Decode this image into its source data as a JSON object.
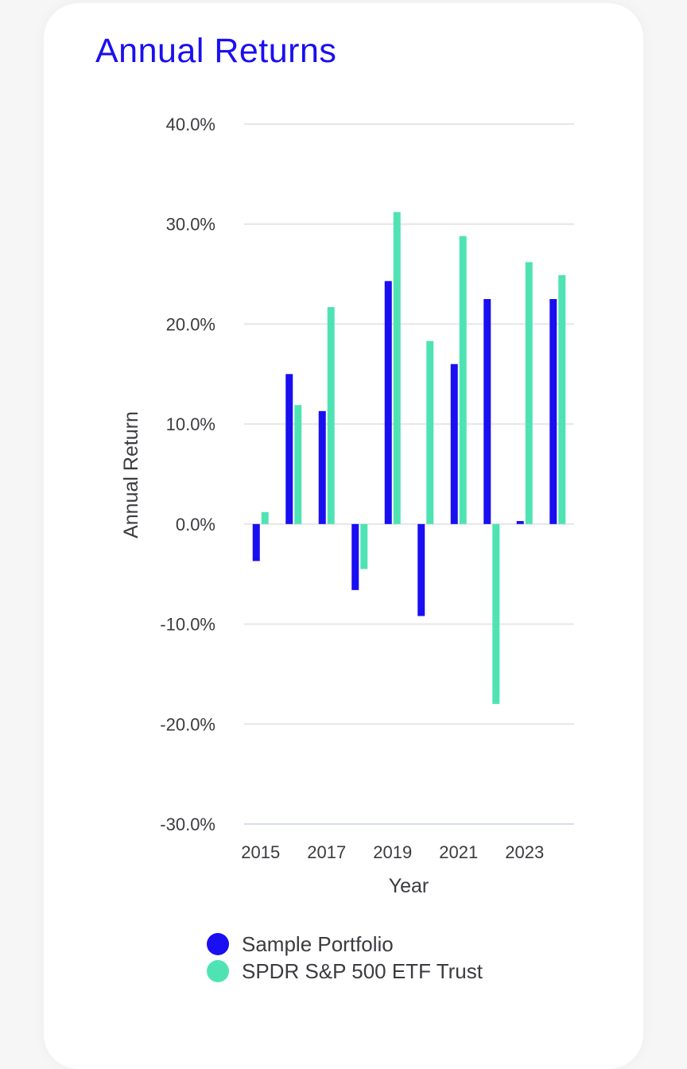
{
  "page": {
    "title": "Annual Returns"
  },
  "colors": {
    "title": "#1a0ff0",
    "portfolio": "#1a0ff0",
    "benchmark": "#4fe3b3",
    "grid": "#e6e6ea",
    "baseline": "#d7dde9"
  },
  "chart_data": {
    "type": "bar",
    "categories": [
      "2015",
      "2016",
      "2017",
      "2018",
      "2019",
      "2020",
      "2021",
      "2022",
      "2023",
      "2024"
    ],
    "x_tick_labels": [
      "2015",
      "2017",
      "2019",
      "2021",
      "2023"
    ],
    "series": [
      {
        "name": "Sample Portfolio",
        "values": [
          -3.7,
          15.0,
          11.3,
          -6.6,
          24.3,
          -9.2,
          16.0,
          22.5,
          0.3,
          22.5
        ]
      },
      {
        "name": "SPDR S&P 500 ETF Trust",
        "values": [
          1.2,
          11.9,
          21.7,
          -4.5,
          31.2,
          18.3,
          28.8,
          -18.0,
          26.2,
          24.9
        ]
      }
    ],
    "y_ticks": [
      "40.0%",
      "30.0%",
      "20.0%",
      "10.0%",
      "0.0%",
      "-10.0%",
      "-20.0%",
      "-30.0%"
    ],
    "ylim": [
      -30,
      40
    ],
    "xlabel": "Year",
    "ylabel": "Annual Return",
    "grid": true,
    "legend_position": "bottom"
  }
}
